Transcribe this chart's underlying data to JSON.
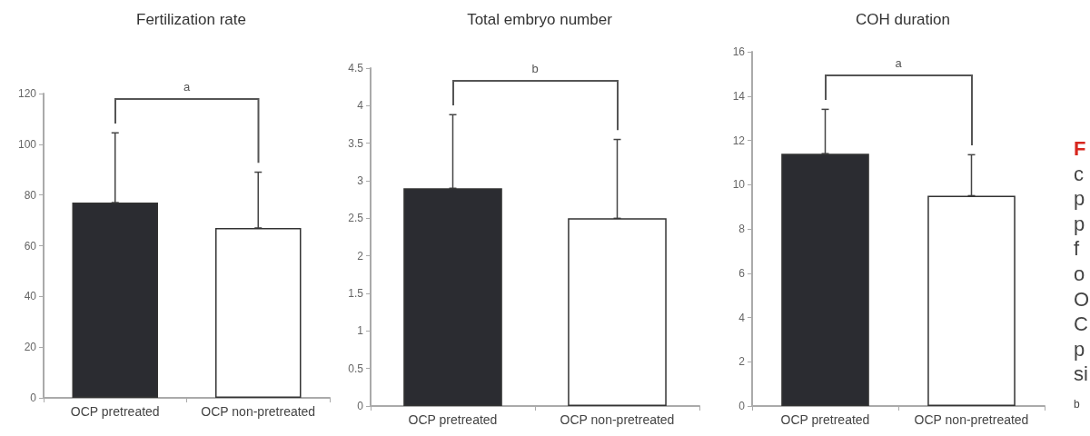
{
  "chart_data": [
    {
      "type": "bar",
      "title": "Fertilization rate",
      "categories": [
        "OCP pretreated",
        "OCP non-pretreated"
      ],
      "values": [
        77,
        67
      ],
      "colors": [
        "#2b2c31",
        "#ffffff"
      ],
      "errors": [
        [
          77,
          104.5
        ],
        [
          67,
          89
        ]
      ],
      "ylim": [
        0,
        120
      ],
      "yticks": [
        0,
        20,
        40,
        60,
        80,
        100,
        120
      ],
      "annotations": [
        "a"
      ]
    },
    {
      "type": "bar",
      "title": "Total embryo number",
      "categories": [
        "OCP pretreated",
        "OCP non-pretreated"
      ],
      "values": [
        2.9,
        2.5
      ],
      "colors": [
        "#2b2c31",
        "#ffffff"
      ],
      "errors": [
        [
          2.9,
          3.88
        ],
        [
          2.5,
          3.55
        ]
      ],
      "ylim": [
        0,
        4.5
      ],
      "yticks": [
        0,
        0.5,
        1,
        1.5,
        2,
        2.5,
        3,
        3.5,
        4,
        4.5
      ],
      "annotations": [
        "b"
      ]
    },
    {
      "type": "bar",
      "title": "COH duration",
      "categories": [
        "OCP pretreated",
        "OCP non-pretreated"
      ],
      "values": [
        11.4,
        9.5
      ],
      "colors": [
        "#2b2c31",
        "#ffffff"
      ],
      "errors": [
        [
          11.4,
          13.4
        ],
        [
          9.5,
          11.35
        ]
      ],
      "ylim": [
        0,
        16
      ],
      "yticks": [
        0,
        2,
        4,
        6,
        8,
        10,
        12,
        14,
        16
      ],
      "annotations": [
        "a"
      ]
    },
    {
      "type": "other",
      "annotations": [
        "F",
        "c",
        "p",
        "p",
        "f",
        "o",
        "O",
        "C",
        "p",
        "si",
        "b"
      ]
    }
  ]
}
